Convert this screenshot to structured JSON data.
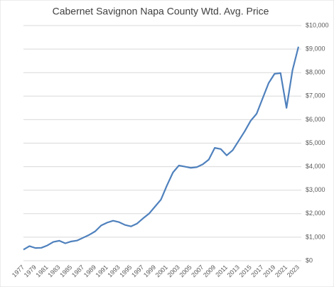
{
  "chart_data": {
    "type": "line",
    "title": "Cabernet Savignon  Napa County Wtd. Avg. Price",
    "categories": [
      "1977",
      null,
      "1979",
      null,
      "1981",
      null,
      "1983",
      null,
      "1985",
      null,
      "1987",
      null,
      "1989",
      null,
      "1991",
      null,
      "1993",
      null,
      "1995",
      null,
      "1997",
      null,
      "1999",
      null,
      "2001",
      null,
      "2003",
      null,
      "2005",
      null,
      "2007",
      null,
      "2009",
      null,
      "2011",
      null,
      "2013",
      null,
      "2015",
      null,
      "2017",
      null,
      "2019",
      null,
      "2021",
      null,
      "2023"
    ],
    "series": [
      {
        "name": "Wtd. Avg. Price",
        "color": "#4f81bd",
        "values": [
          470,
          620,
          540,
          550,
          650,
          800,
          850,
          740,
          820,
          860,
          980,
          1100,
          1250,
          1500,
          1620,
          1700,
          1640,
          1520,
          1460,
          1580,
          1800,
          2000,
          2300,
          2600,
          3200,
          3750,
          4050,
          4000,
          3950,
          3980,
          4100,
          4300,
          4800,
          4750,
          4480,
          4700,
          5100,
          5500,
          5950,
          6250,
          6900,
          7550,
          7950,
          7980,
          6500,
          8100,
          9100
        ]
      }
    ],
    "ylim": [
      0,
      10000
    ],
    "yticks": [
      {
        "value": 0,
        "label": "$0"
      },
      {
        "value": 1000,
        "label": "$1,000"
      },
      {
        "value": 2000,
        "label": "$2,000"
      },
      {
        "value": 3000,
        "label": "$3,000"
      },
      {
        "value": 4000,
        "label": "$4,000"
      },
      {
        "value": 5000,
        "label": "$5,000"
      },
      {
        "value": 6000,
        "label": "$6,000"
      },
      {
        "value": 7000,
        "label": "$7,000"
      },
      {
        "value": 8000,
        "label": "$8,000"
      },
      {
        "value": 9000,
        "label": "$9,000"
      },
      {
        "value": 10000,
        "label": "$10,000"
      }
    ],
    "grid": true
  }
}
